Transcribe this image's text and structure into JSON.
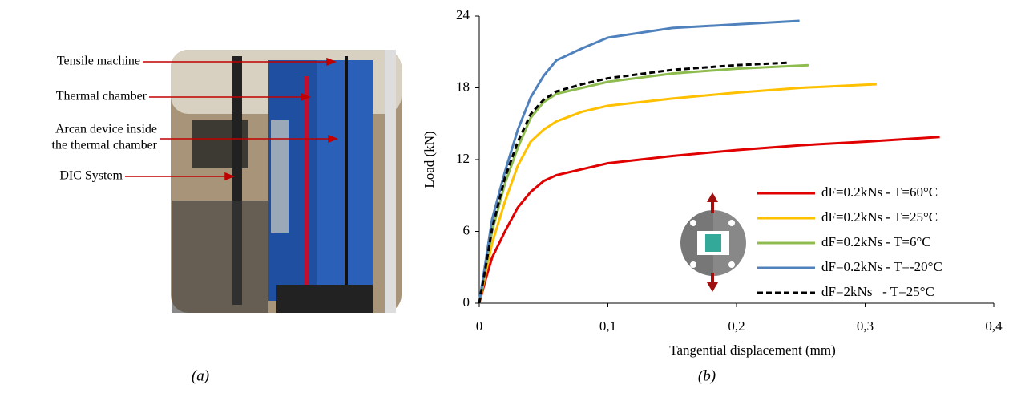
{
  "photo_panel": {
    "annotations": [
      "Tensile machine",
      "Thermal chamber",
      "Arcan device inside",
      "the thermal chamber",
      "DIC System"
    ],
    "caption": "(a)"
  },
  "chart_data": {
    "type": "line",
    "xlabel": "Tangential displacement (mm)",
    "ylabel": "Load (kN)",
    "caption": "(b)",
    "xlim": [
      0,
      0.4
    ],
    "xticks": [
      0,
      {
        "value": 0.1,
        "label": "0,1"
      },
      {
        "value": 0.2,
        "label": "0,2"
      },
      {
        "value": 0.3,
        "label": "0,3"
      },
      {
        "value": 0.4,
        "label": "0,4"
      }
    ],
    "ylim": [
      0,
      24
    ],
    "yticks": [
      0,
      6,
      12,
      18,
      24
    ],
    "grid": false,
    "legend": "lower right",
    "series": [
      {
        "name": "dF=0.2kNs - T=60°C",
        "color": "#e00000",
        "dash": false,
        "x": [
          0,
          0.005,
          0.01,
          0.02,
          0.03,
          0.04,
          0.05,
          0.06,
          0.08,
          0.1,
          0.15,
          0.2,
          0.25,
          0.3,
          0.358
        ],
        "values": [
          0,
          2,
          3.8,
          6,
          8,
          9.3,
          10.2,
          10.7,
          11.2,
          11.7,
          12.3,
          12.8,
          13.2,
          13.5,
          13.9
        ]
      },
      {
        "name": "dF=0.2kNs - T=25°C",
        "color": "#ffc000",
        "dash": false,
        "x": [
          0,
          0.005,
          0.01,
          0.02,
          0.03,
          0.04,
          0.05,
          0.06,
          0.08,
          0.1,
          0.15,
          0.2,
          0.25,
          0.309
        ],
        "values": [
          0,
          2.5,
          5,
          8.5,
          11.5,
          13.5,
          14.5,
          15.2,
          16,
          16.5,
          17.1,
          17.6,
          18,
          18.3
        ]
      },
      {
        "name": "dF=0.2kNs - T=6°C",
        "color": "#8fbc4f",
        "dash": false,
        "x": [
          0,
          0.005,
          0.01,
          0.02,
          0.03,
          0.04,
          0.05,
          0.06,
          0.08,
          0.1,
          0.15,
          0.2,
          0.256
        ],
        "values": [
          0,
          3,
          6,
          10,
          13,
          15.5,
          16.8,
          17.5,
          18,
          18.5,
          19.2,
          19.6,
          19.9
        ]
      },
      {
        "name": "dF=0.2kNs - T=-20°C",
        "color": "#4f81bd",
        "dash": false,
        "x": [
          0,
          0.005,
          0.01,
          0.02,
          0.03,
          0.04,
          0.05,
          0.06,
          0.08,
          0.1,
          0.15,
          0.2,
          0.249
        ],
        "values": [
          0,
          3.5,
          7,
          11,
          14.5,
          17.2,
          19,
          20.3,
          21.3,
          22.2,
          23,
          23.3,
          23.6
        ]
      },
      {
        "name": "dF=2kNs   - T=25°C",
        "color": "#000000",
        "dash": true,
        "x": [
          0,
          0.005,
          0.01,
          0.02,
          0.03,
          0.04,
          0.05,
          0.06,
          0.08,
          0.1,
          0.15,
          0.2,
          0.24
        ],
        "values": [
          0,
          3,
          6.2,
          10.5,
          13.5,
          15.8,
          17,
          17.7,
          18.3,
          18.8,
          19.5,
          19.9,
          20.1
        ]
      }
    ]
  }
}
